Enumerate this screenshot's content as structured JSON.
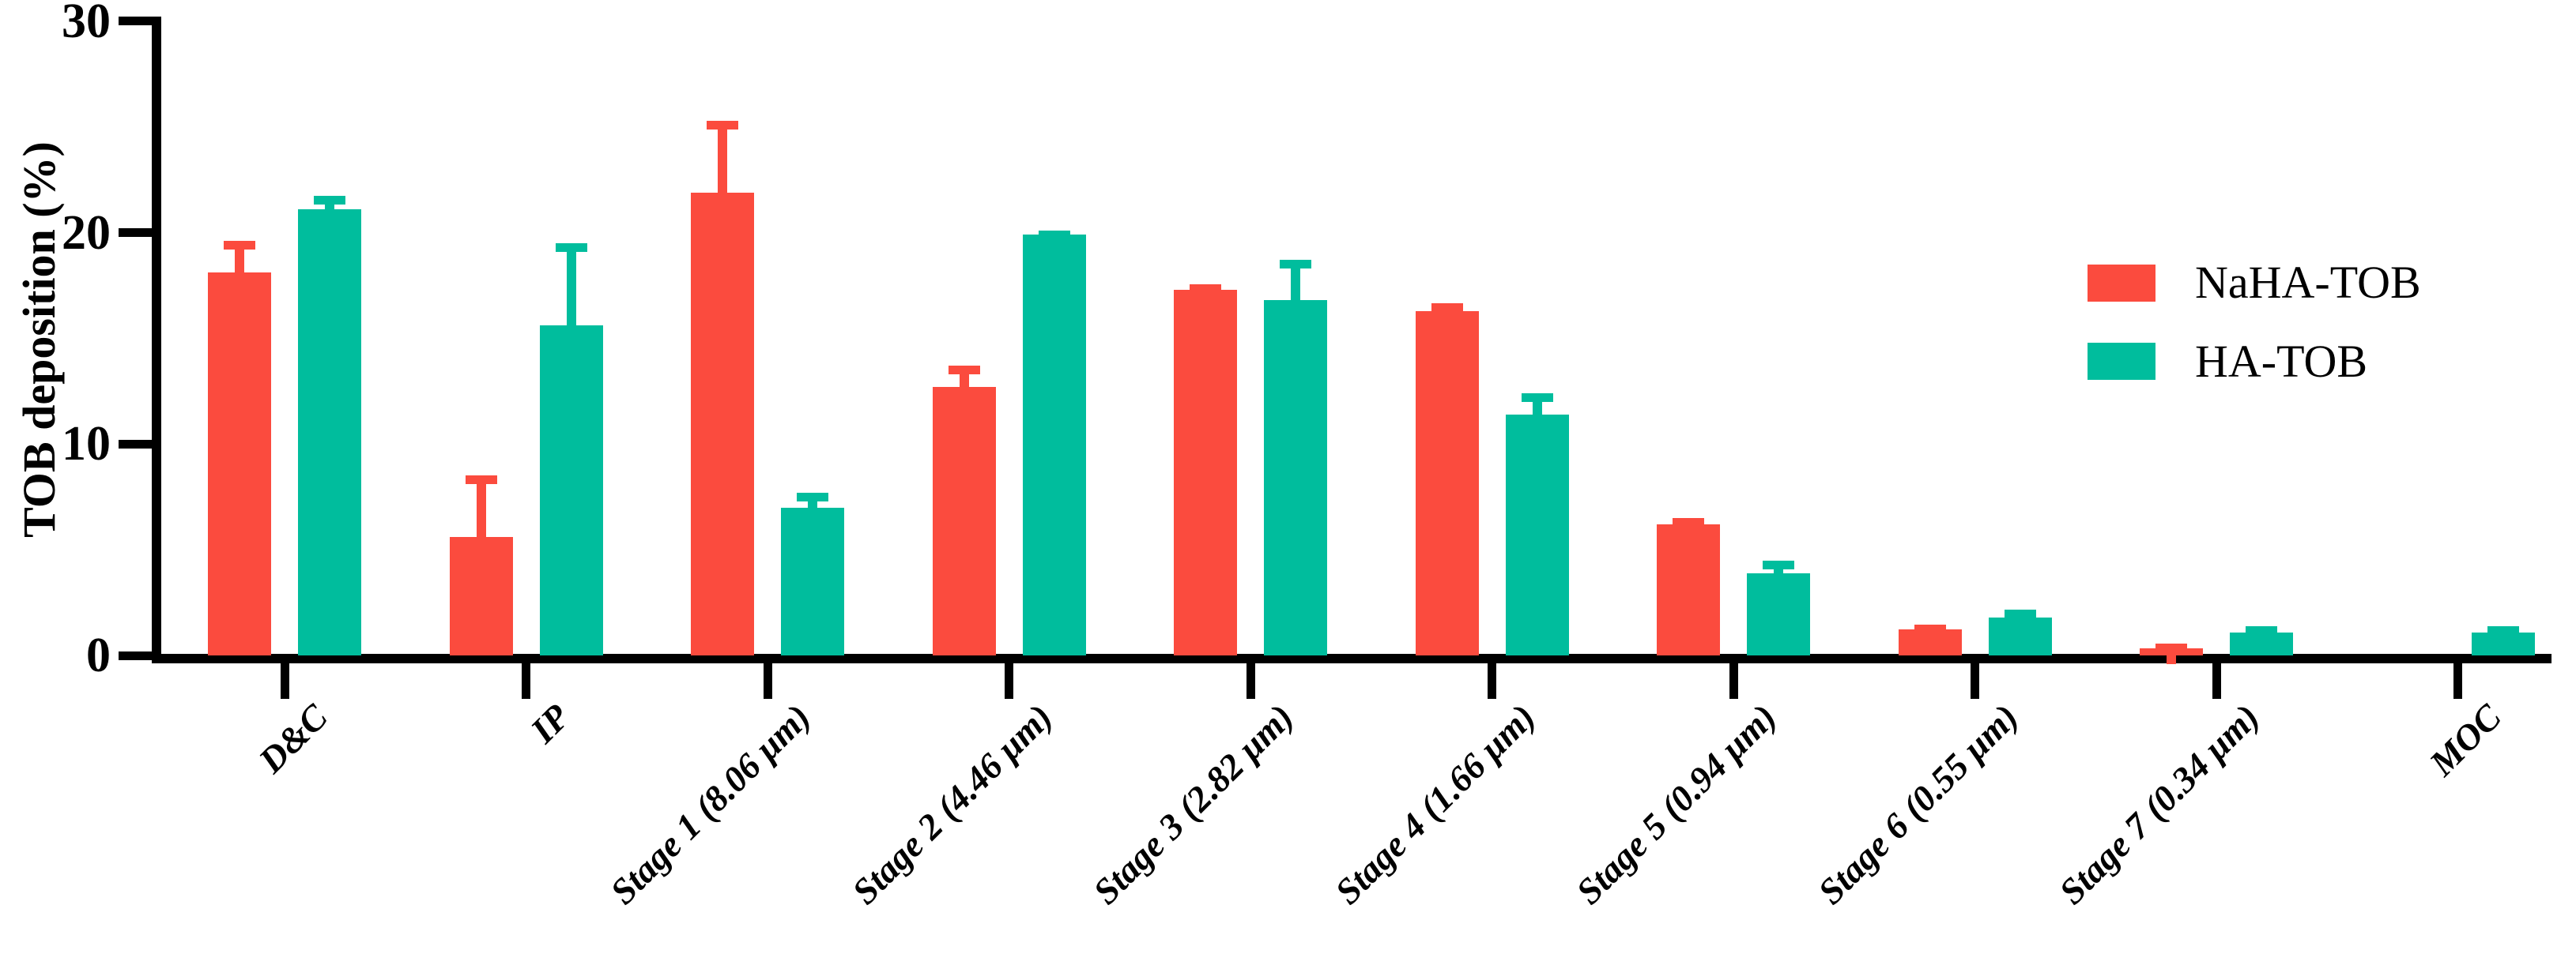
{
  "chart_data": {
    "type": "bar",
    "title": "",
    "xlabel": "",
    "ylabel": "TOB deposition (%)",
    "ylim": [
      0,
      30
    ],
    "yticks": [
      0,
      10,
      20,
      30
    ],
    "grid": false,
    "legend_position": "right",
    "axis_color": "#000000",
    "categories": [
      "D&C",
      "IP",
      "Stage 1 (8.06 μm)",
      "Stage 2 (4.46 μm)",
      "Stage 3 (2.82 μm)",
      "Stage 4 (1.66 μm)",
      "Stage 5 (0.94 μm)",
      "Stage 6 (0.55 μm)",
      "Stage 7 (0.34 μm)",
      "MOC"
    ],
    "series": [
      {
        "name": "NaHA-TOB",
        "color": "#fb4b3e",
        "values": [
          18.1,
          5.6,
          21.9,
          12.7,
          17.3,
          16.3,
          6.2,
          1.25,
          0.35,
          0
        ],
        "errors_plus": [
          1.5,
          2.9,
          3.4,
          1.0,
          0.25,
          0.35,
          0.3,
          0.2,
          0.2,
          0
        ]
      },
      {
        "name": "HA-TOB",
        "color": "#00bd9d",
        "values": [
          21.1,
          15.6,
          7.0,
          19.9,
          16.8,
          11.4,
          3.9,
          1.8,
          1.1,
          1.1
        ],
        "errors_plus": [
          0.65,
          3.9,
          0.7,
          0.2,
          1.9,
          1.0,
          0.6,
          0.35,
          0.3,
          0.3
        ]
      }
    ]
  }
}
